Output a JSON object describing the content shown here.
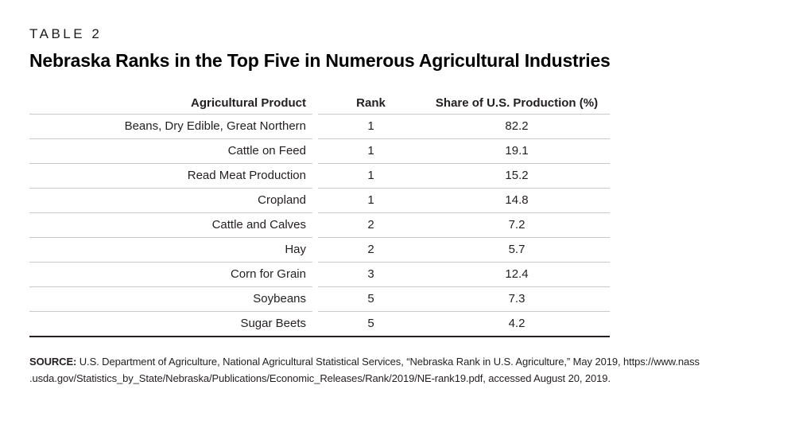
{
  "page": {
    "kicker": "TABLE 2",
    "title": "Nebraska Ranks in the Top Five in Numerous Agricultural Industries"
  },
  "table": {
    "columns": [
      "Agricultural Product",
      "Rank",
      "Share of U.S. Production (%)"
    ],
    "rows": [
      {
        "product": "Beans, Dry Edible, Great Northern",
        "rank": "1",
        "share": "82.2"
      },
      {
        "product": "Cattle on Feed",
        "rank": "1",
        "share": "19.1"
      },
      {
        "product": "Read Meat Production",
        "rank": "1",
        "share": "15.2"
      },
      {
        "product": "Cropland",
        "rank": "1",
        "share": "14.8"
      },
      {
        "product": "Cattle and Calves",
        "rank": "2",
        "share": "7.2"
      },
      {
        "product": "Hay",
        "rank": "2",
        "share": "5.7"
      },
      {
        "product": "Corn for Grain",
        "rank": "3",
        "share": "12.4"
      },
      {
        "product": "Soybeans",
        "rank": "5",
        "share": "7.3"
      },
      {
        "product": "Sugar Beets",
        "rank": "5",
        "share": "4.2"
      }
    ]
  },
  "source": {
    "label": "SOURCE:",
    "line1": "U.S. Department of Agriculture, National Agricultural Statistical Services, “Nebraska Rank in U.S. Agriculture,” May 2019, https://www.nass",
    "line2": ".usda.gov/Statistics_by_State/Nebraska/Publications/Economic_Releases/Rank/2019/NE-rank19.pdf, accessed August 20, 2019."
  },
  "colors": {
    "text": "#231f20",
    "row_rule": "#c9c9c9",
    "heavy_rule": "#231f20",
    "background": "#ffffff"
  }
}
